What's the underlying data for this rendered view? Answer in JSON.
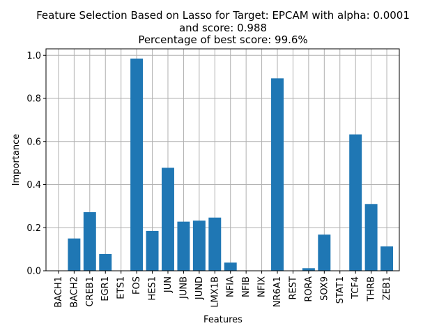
{
  "chart_data": {
    "type": "bar",
    "title_lines": [
      "Feature Selection Based on Lasso for Target: EPCAM with alpha: 0.0001",
      "and score: 0.988",
      "Percentage of best score: 99.6%"
    ],
    "xlabel": "Features",
    "ylabel": "Importance",
    "categories": [
      "BACH1",
      "BACH2",
      "CREB1",
      "EGR1",
      "ETS1",
      "FOS",
      "HES1",
      "JUN",
      "JUNB",
      "JUND",
      "LMX1B",
      "NFIA",
      "NFIB",
      "NFIX",
      "NR6A1",
      "REST",
      "RORA",
      "SOX9",
      "STAT1",
      "TCF4",
      "THRB",
      "ZEB1"
    ],
    "values": [
      0.0,
      0.15,
      0.272,
      0.078,
      0.0,
      0.985,
      0.185,
      0.478,
      0.228,
      0.233,
      0.247,
      0.038,
      0.0,
      0.0,
      0.893,
      0.0,
      0.012,
      0.168,
      0.0,
      0.633,
      0.31,
      0.113
    ],
    "ylim": [
      0,
      1.03
    ],
    "yticks": [
      "0.0",
      "0.2",
      "0.4",
      "0.6",
      "0.8",
      "1.0"
    ],
    "grid": true,
    "bar_color": "#1f77b4"
  }
}
